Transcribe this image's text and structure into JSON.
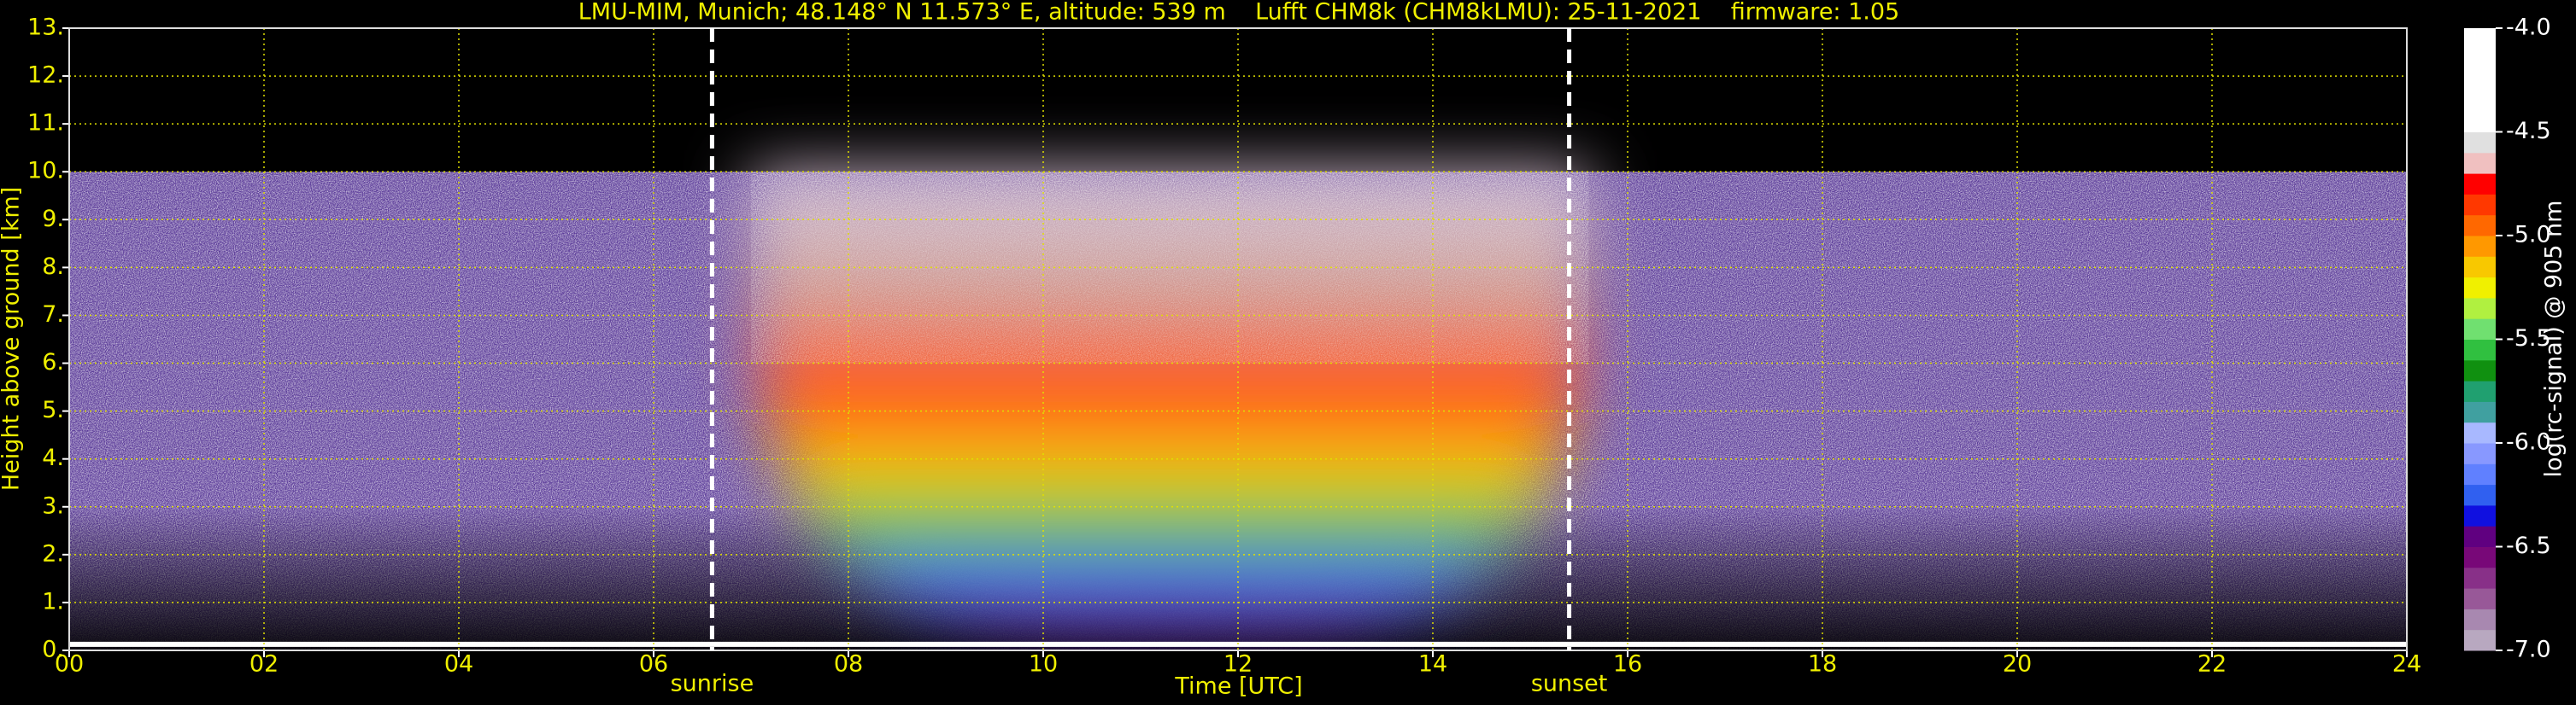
{
  "chart_data": {
    "type": "heatmap",
    "title": "LMU-MIM, Munich; 48.148° N 11.573° E, altitude: 539 m    Lufft CHM8k (CHM8kLMU): 25-11-2021    firmware: 1.05",
    "xlabel": "Time [UTC]",
    "ylabel": "Height above ground [km]",
    "colorbar_label": "log(rc-signal) @ 905 nm",
    "xlim": [
      0,
      24
    ],
    "xticks": [
      {
        "value": 0,
        "label": "00"
      },
      {
        "value": 2,
        "label": "02"
      },
      {
        "value": 4,
        "label": "04"
      },
      {
        "value": 6,
        "label": "06"
      },
      {
        "value": 8,
        "label": "08"
      },
      10,
      12,
      14,
      16,
      18,
      20,
      22,
      24
    ],
    "ylim": [
      0,
      13
    ],
    "yticks": [
      {
        "value": 0,
        "label": "0."
      },
      {
        "value": 1,
        "label": "1."
      },
      {
        "value": 2,
        "label": "2."
      },
      {
        "value": 3,
        "label": "3."
      },
      {
        "value": 4,
        "label": "4."
      },
      {
        "value": 5,
        "label": "5."
      },
      {
        "value": 6,
        "label": "6."
      },
      {
        "value": 7,
        "label": "7."
      },
      {
        "value": 8,
        "label": "8."
      },
      {
        "value": 9,
        "label": "9."
      },
      {
        "value": 10,
        "label": "10."
      },
      {
        "value": 11,
        "label": "11."
      },
      {
        "value": 12,
        "label": "12."
      },
      {
        "value": 13,
        "label": "13."
      }
    ],
    "clim": [
      -7,
      -4
    ],
    "cticks": [
      {
        "value": -7,
        "label": "-7.0"
      },
      -6.5,
      {
        "value": -6,
        "label": "-6.0"
      },
      -5.5,
      {
        "value": -5,
        "label": "-5.0"
      },
      -4.5,
      {
        "value": -4,
        "label": "-4.0"
      }
    ],
    "colorscale": [
      "#b8a8c0",
      "#a888b0",
      "#985898",
      "#883088",
      "#780878",
      "#600080",
      "#1010e0",
      "#3060f0",
      "#6080ff",
      "#8898ff",
      "#a8b8ff",
      "#40a0a0",
      "#20a070",
      "#109010",
      "#30c040",
      "#70e070",
      "#b0f040",
      "#f0f000",
      "#f8c800",
      "#ff9800",
      "#ff6800",
      "#ff3800",
      "#ff0000",
      "#f0c0c0",
      "#e0e0e0",
      "#ffffff",
      "#ffffff",
      "#ffffff",
      "#ffffff",
      "#ffffff"
    ],
    "grid": true,
    "annotations": [
      {
        "text": "sunrise",
        "x": 6.6
      },
      {
        "text": "sunset",
        "x": 15.4
      }
    ]
  }
}
